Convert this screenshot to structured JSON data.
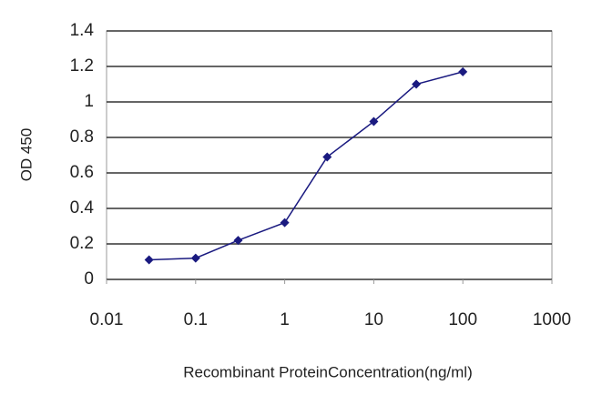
{
  "chart_data": {
    "type": "line",
    "x": [
      0.03,
      0.1,
      0.3,
      1,
      3,
      10,
      30,
      100
    ],
    "series": [
      {
        "name": "OD 450",
        "color": "#1a1a80",
        "values": [
          0.11,
          0.12,
          0.22,
          0.32,
          0.69,
          0.89,
          1.1,
          1.17
        ]
      }
    ],
    "x_label": "Recombinant ProteinConcentration(ng/ml)",
    "y_label": "OD 450",
    "xscale": "log",
    "xlim": [
      0.01,
      1000
    ],
    "xticks": [
      0.01,
      0.1,
      1,
      10,
      100,
      1000
    ],
    "ylim": [
      0,
      1.4
    ],
    "yticks": [
      0,
      0.2,
      0.4,
      0.6,
      0.8,
      1,
      1.2,
      1.4
    ],
    "grid": true
  }
}
